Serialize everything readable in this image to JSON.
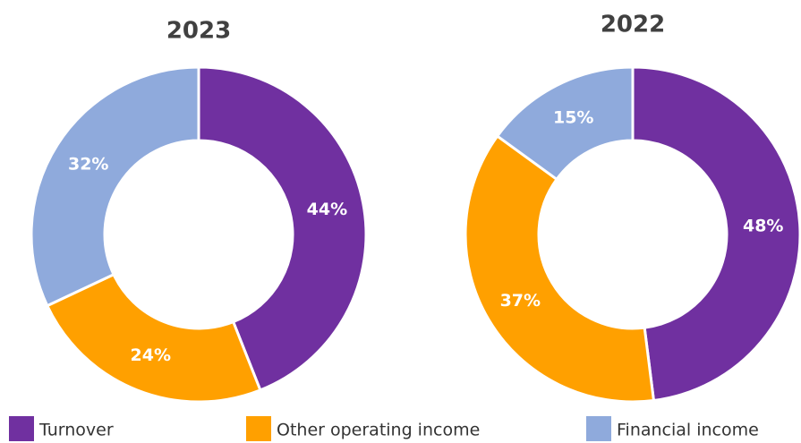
{
  "chart_data": [
    {
      "type": "donut",
      "title": "2023",
      "categories": [
        "Turnover",
        "Other operating income",
        "Financial income"
      ],
      "values": [
        44,
        24,
        32
      ],
      "value_labels": [
        "44%",
        "24%",
        "32%"
      ],
      "colors": [
        "#7030a0",
        "#ffa000",
        "#8faadc"
      ],
      "legend": "bottom"
    },
    {
      "type": "donut",
      "title": "2022",
      "categories": [
        "Turnover",
        "Other operating income",
        "Financial income"
      ],
      "values": [
        48,
        37,
        15
      ],
      "value_labels": [
        "48%",
        "37%",
        "15%"
      ],
      "colors": [
        "#7030a0",
        "#ffa000",
        "#8faadc"
      ],
      "legend": "bottom"
    }
  ]
}
